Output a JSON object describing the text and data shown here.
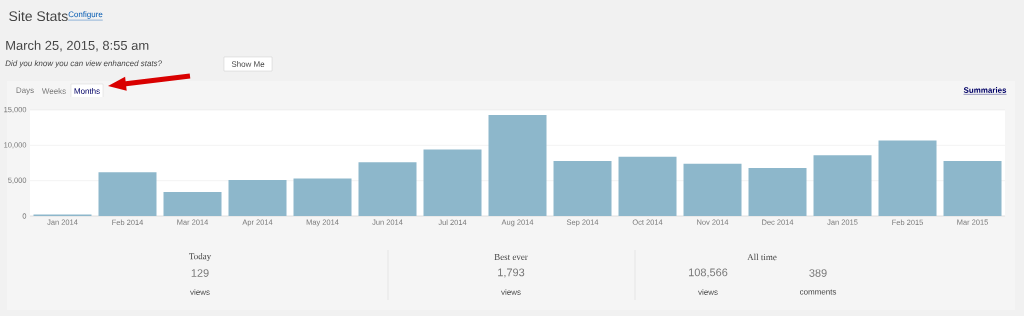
{
  "chart_data": {
    "type": "bar",
    "title": "Site Stats",
    "categories": [
      "Jan 2014",
      "Feb 2014",
      "Mar 2014",
      "Apr 2014",
      "May 2014",
      "Jun 2014",
      "Jul 2014",
      "Aug 2014",
      "Sep 2014",
      "Oct 2014",
      "Nov 2014",
      "Dec 2014",
      "Jan 2015",
      "Feb 2015",
      "Mar 2015"
    ],
    "values": [
      200,
      6200,
      3400,
      5100,
      5300,
      7600,
      9400,
      14300,
      7800,
      8400,
      7400,
      6800,
      8600,
      10700,
      7800
    ],
    "color": "#8db7cb",
    "ylim": [
      0,
      15000
    ],
    "yticks": [
      {
        "value": 0,
        "label": "0"
      },
      {
        "value": 5000,
        "label": "5,000"
      },
      {
        "value": 10000,
        "label": "10,000"
      },
      {
        "value": 15000,
        "label": "15,000"
      }
    ],
    "grid": "y",
    "annotations": [
      "Configure",
      "March 25, 2015, 8:55 am",
      "Did you know you can view enhanced stats?",
      "Show Me",
      "Days",
      "Weeks",
      "Months",
      "Summaries",
      "Today",
      "129",
      "views",
      "Best ever",
      "1,793",
      "views",
      "All time",
      "108,566",
      "views",
      "389",
      "comments"
    ]
  }
}
